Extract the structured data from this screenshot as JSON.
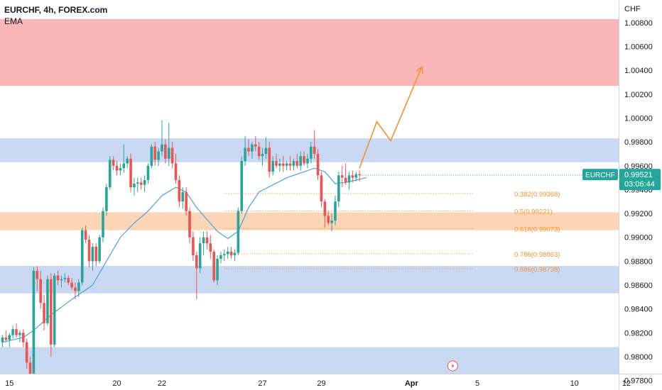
{
  "legend": {
    "symbol": "EURCHF, 4h, FOREX.com",
    "indicator": "EMA"
  },
  "axis": {
    "currency": "CHF"
  },
  "price_tag": {
    "symbol": "EURCHF",
    "price": "0.99521",
    "countdown": "03:06:44"
  },
  "colors": {
    "up": "#26a69a",
    "down": "#ef5350",
    "ema": "#4aa3df",
    "supply_zone": "#f8b6b8",
    "demand_zone": "#c9d9f4",
    "fib_zone": "#fbd5b5",
    "arrow": "#f5922f",
    "fib_line": "#f5922f"
  },
  "chart_data": {
    "type": "candlestick",
    "ylim": [
      0.9772,
      1.0099
    ],
    "y_ticks": [
      0.978,
      0.98,
      0.982,
      0.984,
      0.986,
      0.988,
      0.99,
      0.992,
      0.994,
      0.996,
      0.998,
      1.0,
      1.002,
      1.004,
      1.006,
      1.008
    ],
    "y_tick_labels": [
      "0.97800",
      "0.98000",
      "0.98200",
      "0.98400",
      "0.98600",
      "0.98800",
      "0.99000",
      "0.99200",
      "0.99400",
      "0.99600",
      "0.99800",
      "1.00000",
      "1.00200",
      "1.00400",
      "1.00600",
      "1.00800"
    ],
    "x_ticks": [
      {
        "label": "15",
        "i": 2
      },
      {
        "label": "20",
        "i": 33
      },
      {
        "label": "22",
        "i": 46
      },
      {
        "label": "27",
        "i": 75
      },
      {
        "label": "29",
        "i": 92
      },
      {
        "label": "Apr",
        "i": 118,
        "bold": true
      },
      {
        "label": "5",
        "i": 137
      },
      {
        "label": "10",
        "i": 165
      },
      {
        "label": "12",
        "i": 180
      }
    ],
    "candles": [
      [
        0.9812,
        0.9818,
        0.9808,
        0.9816
      ],
      [
        0.9816,
        0.9822,
        0.9812,
        0.9814
      ],
      [
        0.9814,
        0.982,
        0.9808,
        0.9818
      ],
      [
        0.9818,
        0.9826,
        0.9815,
        0.9823
      ],
      [
        0.9823,
        0.9828,
        0.9816,
        0.9818
      ],
      [
        0.9818,
        0.9822,
        0.9812,
        0.982
      ],
      [
        0.982,
        0.9823,
        0.9808,
        0.9812
      ],
      [
        0.9812,
        0.9815,
        0.979,
        0.9795
      ],
      [
        0.9795,
        0.98,
        0.9775,
        0.978
      ],
      [
        0.978,
        0.9875,
        0.9778,
        0.9872
      ],
      [
        0.9872,
        0.9876,
        0.9855,
        0.9865
      ],
      [
        0.9865,
        0.9872,
        0.984,
        0.9845
      ],
      [
        0.9845,
        0.9852,
        0.9822,
        0.9828
      ],
      [
        0.9828,
        0.9868,
        0.9826,
        0.9865
      ],
      [
        0.9865,
        0.987,
        0.98,
        0.981
      ],
      [
        0.981,
        0.987,
        0.9808,
        0.9868
      ],
      [
        0.9868,
        0.9872,
        0.986,
        0.9864
      ],
      [
        0.9864,
        0.9868,
        0.9858,
        0.9865
      ],
      [
        0.9865,
        0.987,
        0.9862,
        0.9866
      ],
      [
        0.9866,
        0.9868,
        0.986,
        0.9862
      ],
      [
        0.9862,
        0.9866,
        0.9856,
        0.9858
      ],
      [
        0.9858,
        0.9862,
        0.9848,
        0.9855
      ],
      [
        0.9855,
        0.9865,
        0.985,
        0.9862
      ],
      [
        0.9862,
        0.9908,
        0.986,
        0.9906
      ],
      [
        0.9906,
        0.991,
        0.9895,
        0.9898
      ],
      [
        0.9898,
        0.9902,
        0.9875,
        0.988
      ],
      [
        0.988,
        0.9895,
        0.9872,
        0.9892
      ],
      [
        0.9892,
        0.9895,
        0.9876,
        0.988
      ],
      [
        0.988,
        0.9902,
        0.9878,
        0.99
      ],
      [
        0.99,
        0.9925,
        0.9896,
        0.9922
      ],
      [
        0.9922,
        0.9945,
        0.9918,
        0.9942
      ],
      [
        0.9942,
        0.9968,
        0.994,
        0.9965
      ],
      [
        0.9965,
        0.9968,
        0.9956,
        0.996
      ],
      [
        0.996,
        0.9964,
        0.9952,
        0.9956
      ],
      [
        0.9956,
        0.9962,
        0.9952,
        0.9958
      ],
      [
        0.9958,
        0.9978,
        0.9954,
        0.9962
      ],
      [
        0.9962,
        0.9968,
        0.9958,
        0.9966
      ],
      [
        0.9966,
        0.997,
        0.9938,
        0.9942
      ],
      [
        0.9942,
        0.995,
        0.9935,
        0.9945
      ],
      [
        0.9945,
        0.995,
        0.9938,
        0.9946
      ],
      [
        0.9946,
        0.995,
        0.994,
        0.9944
      ],
      [
        0.9944,
        0.9952,
        0.9938,
        0.9948
      ],
      [
        0.9948,
        0.9962,
        0.9945,
        0.996
      ],
      [
        0.996,
        0.9978,
        0.9958,
        0.9976
      ],
      [
        0.9976,
        0.998,
        0.996,
        0.9965
      ],
      [
        0.9965,
        0.9975,
        0.996,
        0.9972
      ],
      [
        0.9972,
        0.9998,
        0.9968,
        0.9978
      ],
      [
        0.9978,
        0.9982,
        0.9962,
        0.9966
      ],
      [
        0.9966,
        0.9996,
        0.996,
        0.9975
      ],
      [
        0.9975,
        0.998,
        0.9958,
        0.9962
      ],
      [
        0.9962,
        0.997,
        0.9945,
        0.9948
      ],
      [
        0.9948,
        0.9952,
        0.9925,
        0.993
      ],
      [
        0.993,
        0.9942,
        0.9924,
        0.9938
      ],
      [
        0.9938,
        0.9942,
        0.9918,
        0.9922
      ],
      [
        0.9922,
        0.9925,
        0.9895,
        0.99
      ],
      [
        0.99,
        0.9905,
        0.988,
        0.9885
      ],
      [
        0.9885,
        0.9888,
        0.9848,
        0.9874
      ],
      [
        0.9874,
        0.99,
        0.987,
        0.9895
      ],
      [
        0.9895,
        0.9905,
        0.9885,
        0.99
      ],
      [
        0.99,
        0.9905,
        0.989,
        0.9895
      ],
      [
        0.9895,
        0.9902,
        0.9882,
        0.9888
      ],
      [
        0.9888,
        0.989,
        0.9862,
        0.9864
      ],
      [
        0.9864,
        0.9885,
        0.986,
        0.9882
      ],
      [
        0.9882,
        0.9888,
        0.9878,
        0.9885
      ],
      [
        0.9885,
        0.989,
        0.988,
        0.9886
      ],
      [
        0.9886,
        0.9892,
        0.9882,
        0.9888
      ],
      [
        0.9888,
        0.9892,
        0.9882,
        0.9885
      ],
      [
        0.9885,
        0.989,
        0.988,
        0.9887
      ],
      [
        0.9887,
        0.9925,
        0.9885,
        0.9922
      ],
      [
        0.9922,
        0.9968,
        0.992,
        0.9964
      ],
      [
        0.9964,
        0.9985,
        0.996,
        0.9975
      ],
      [
        0.9975,
        0.9982,
        0.9968,
        0.9972
      ],
      [
        0.9972,
        0.998,
        0.9966,
        0.9978
      ],
      [
        0.9978,
        0.9985,
        0.9972,
        0.9976
      ],
      [
        0.9976,
        0.998,
        0.9965,
        0.9968
      ],
      [
        0.9968,
        0.9975,
        0.996,
        0.997
      ],
      [
        0.997,
        0.9984,
        0.9966,
        0.9975
      ],
      [
        0.9975,
        0.998,
        0.995,
        0.9955
      ],
      [
        0.9955,
        0.9968,
        0.9952,
        0.9964
      ],
      [
        0.9964,
        0.997,
        0.9958,
        0.996
      ],
      [
        0.996,
        0.9966,
        0.9955,
        0.9962
      ],
      [
        0.9962,
        0.9968,
        0.9955,
        0.996
      ],
      [
        0.996,
        0.9964,
        0.9956,
        0.9962
      ],
      [
        0.9962,
        0.9968,
        0.9956,
        0.996
      ],
      [
        0.996,
        0.9966,
        0.9956,
        0.9964
      ],
      [
        0.9964,
        0.997,
        0.9958,
        0.996
      ],
      [
        0.996,
        0.9972,
        0.9956,
        0.9968
      ],
      [
        0.9968,
        0.9972,
        0.996,
        0.9962
      ],
      [
        0.9962,
        0.997,
        0.9958,
        0.9966
      ],
      [
        0.9966,
        0.998,
        0.9962,
        0.9976
      ],
      [
        0.9976,
        0.999,
        0.9966,
        0.997
      ],
      [
        0.997,
        0.9974,
        0.9948,
        0.9952
      ],
      [
        0.9952,
        0.9955,
        0.9925,
        0.993
      ],
      [
        0.993,
        0.9932,
        0.9908,
        0.9918
      ],
      [
        0.9918,
        0.9922,
        0.991,
        0.9912
      ],
      [
        0.9912,
        0.992,
        0.9905,
        0.9914
      ],
      [
        0.9914,
        0.9935,
        0.991,
        0.993
      ],
      [
        0.993,
        0.9955,
        0.9925,
        0.9952
      ],
      [
        0.9952,
        0.996,
        0.9942,
        0.995
      ],
      [
        0.995,
        0.9962,
        0.9944,
        0.9946
      ],
      [
        0.9946,
        0.9955,
        0.994,
        0.9952
      ],
      [
        0.9952,
        0.9956,
        0.9946,
        0.995
      ],
      [
        0.995,
        0.9955,
        0.9947,
        0.9953
      ],
      [
        0.9953,
        0.9956,
        0.9947,
        0.9952
      ]
    ],
    "ema": [
      [
        0,
        0.9812
      ],
      [
        6,
        0.9816
      ],
      [
        9,
        0.9822
      ],
      [
        14,
        0.9835
      ],
      [
        20,
        0.9848
      ],
      [
        26,
        0.986
      ],
      [
        30,
        0.988
      ],
      [
        34,
        0.99
      ],
      [
        38,
        0.9912
      ],
      [
        42,
        0.9922
      ],
      [
        46,
        0.9935
      ],
      [
        50,
        0.9942
      ],
      [
        53,
        0.9938
      ],
      [
        56,
        0.9925
      ],
      [
        59,
        0.9915
      ],
      [
        62,
        0.9905
      ],
      [
        65,
        0.9899
      ],
      [
        68,
        0.9905
      ],
      [
        71,
        0.9925
      ],
      [
        74,
        0.9938
      ],
      [
        78,
        0.9944
      ],
      [
        82,
        0.995
      ],
      [
        86,
        0.9954
      ],
      [
        90,
        0.9958
      ],
      [
        93,
        0.9955
      ],
      [
        96,
        0.9945
      ],
      [
        99,
        0.9946
      ],
      [
        102,
        0.9948
      ],
      [
        105,
        0.995
      ]
    ],
    "zones": [
      {
        "name": "supply",
        "from": 1.0027,
        "to": 1.0083,
        "color": "#f8b6b8"
      },
      {
        "name": "resistance",
        "from": 0.9963,
        "to": 0.9983,
        "color": "#c9d9f4"
      },
      {
        "name": "fib",
        "from": 0.9906,
        "to": 0.9921,
        "color": "#fbd5b5"
      },
      {
        "name": "support",
        "from": 0.9853,
        "to": 0.9876,
        "color": "#c9d9f4"
      },
      {
        "name": "lower",
        "from": 0.9782,
        "to": 0.9808,
        "color": "#c9d9f4"
      }
    ],
    "fib_levels": [
      {
        "label": "0.382(0.99368)",
        "value": 0.99368,
        "from_i": 64
      },
      {
        "label": "0.5(0.99221)",
        "value": 0.99221,
        "from_i": 64
      },
      {
        "label": "0.618(0.99073)",
        "value": 0.99073,
        "from_i": 64
      },
      {
        "label": "0.786(0.98863)",
        "value": 0.98863,
        "from_i": 64
      },
      {
        "label": "0.886(0.98738)",
        "value": 0.98738,
        "from_i": 64
      }
    ],
    "projection": [
      [
        103,
        0.9958
      ],
      [
        108,
        0.9997
      ],
      [
        112,
        0.9981
      ],
      [
        121,
        1.0043
      ]
    ],
    "last_price": 0.99521
  }
}
